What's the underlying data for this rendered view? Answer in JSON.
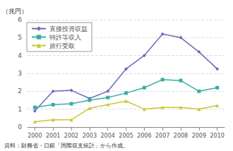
{
  "chart_data": {
    "type": "line",
    "ylabel": "（兆円）",
    "annotations": [
      "資料：財務省・日銀「国際収支統計」から作成。"
    ],
    "x": [
      2000,
      2001,
      2002,
      2003,
      2004,
      2005,
      2006,
      2007,
      2008,
      2009,
      2010
    ],
    "xlim": [
      1999.6,
      2010.4
    ],
    "xticks": [
      2000,
      2001,
      2002,
      2003,
      2004,
      2005,
      2006,
      2007,
      2008,
      2009,
      2010
    ],
    "ylim": [
      0,
      6
    ],
    "yticks": [
      0,
      1,
      2,
      3,
      4,
      5,
      6
    ],
    "grid": true,
    "legend": "upper left",
    "series": [
      {
        "name": "直接投資収益",
        "color": "#6b6bbb",
        "marker": "diamond",
        "values": [
          0.9,
          2.0,
          2.05,
          1.6,
          2.0,
          3.25,
          4.0,
          5.2,
          5.0,
          4.2,
          3.25
        ]
      },
      {
        "name": "特許等収入",
        "color": "#3aada0",
        "marker": "square",
        "values": [
          1.1,
          1.25,
          1.3,
          1.5,
          1.65,
          1.9,
          2.2,
          2.65,
          2.6,
          2.0,
          2.2
        ]
      },
      {
        "name": "旅行受取",
        "color": "#c8c832",
        "marker": "triangle",
        "values": [
          0.3,
          0.4,
          0.4,
          1.05,
          1.25,
          1.45,
          1.0,
          1.1,
          1.1,
          1.0,
          1.2
        ]
      }
    ]
  }
}
